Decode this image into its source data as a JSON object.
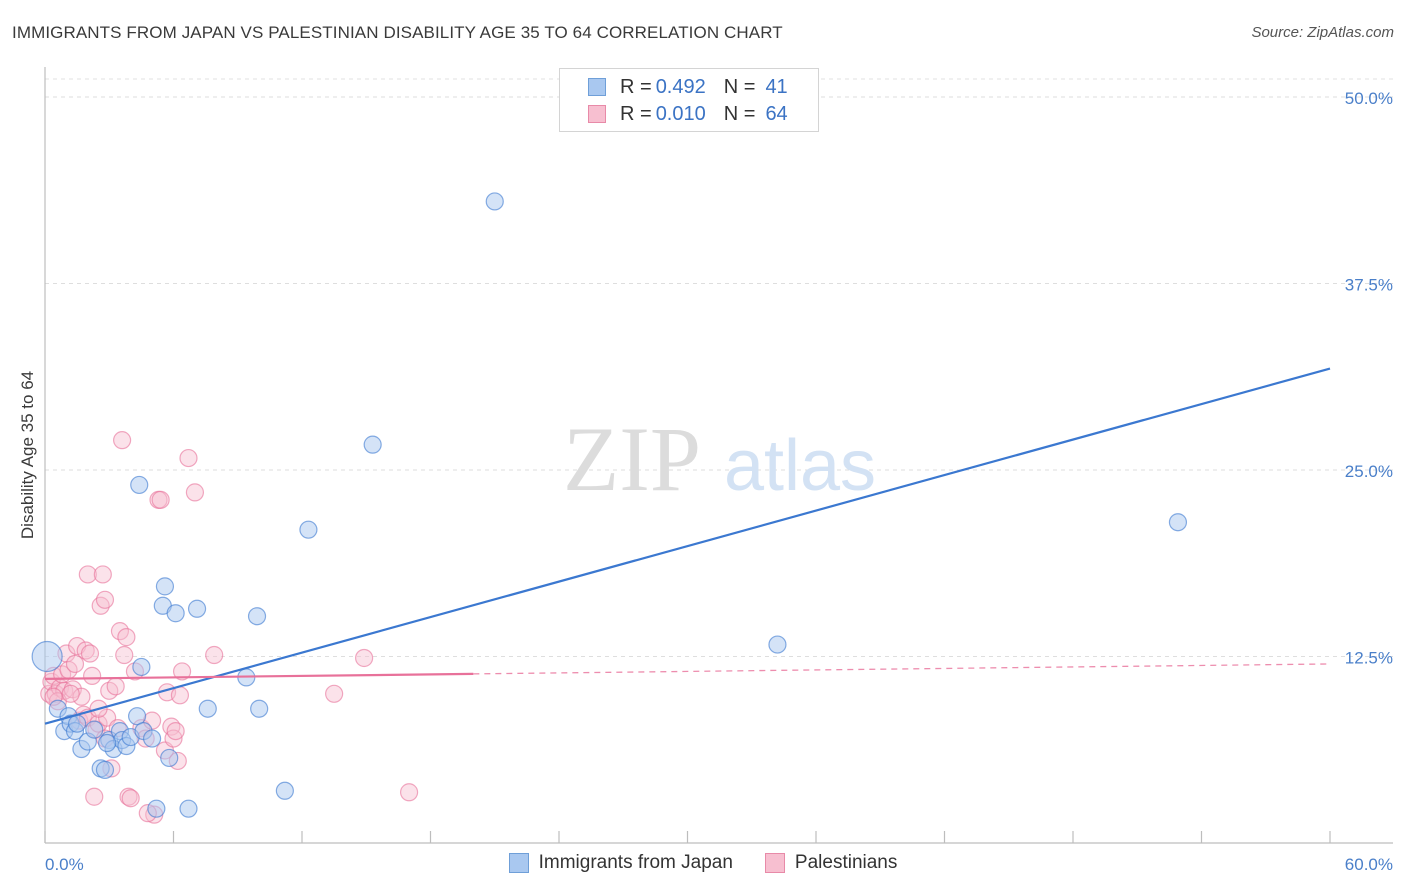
{
  "header": {
    "title": "IMMIGRANTS FROM JAPAN VS PALESTINIAN DISABILITY AGE 35 TO 64 CORRELATION CHART",
    "source": "Source: ZipAtlas.com"
  },
  "watermark": {
    "zip": "ZIP",
    "atlas": "atlas"
  },
  "legend": {
    "rows": [
      {
        "r_label": "R = ",
        "r_value": "0.492",
        "n_label": "N = ",
        "n_value": "41",
        "color": "#a9c8f0",
        "border": "#6f9fd8"
      },
      {
        "r_label": "R = ",
        "r_value": "0.010",
        "n_label": "N = ",
        "n_value": "64",
        "color": "#f7bfd0",
        "border": "#e88aa8"
      }
    ]
  },
  "bottom_legend": {
    "items": [
      {
        "label": "Immigrants from Japan",
        "color": "#a9c8f0",
        "border": "#6f9fd8"
      },
      {
        "label": "Palestinians",
        "color": "#f7bfd0",
        "border": "#e88aa8"
      }
    ]
  },
  "chart_data": {
    "type": "scatter",
    "title": "IMMIGRANTS FROM JAPAN VS PALESTINIAN DISABILITY AGE 35 TO 64 CORRELATION CHART",
    "xlabel": "",
    "ylabel": "Disability Age 35 to 64",
    "xlim": [
      0,
      60
    ],
    "ylim": [
      0,
      50
    ],
    "x_tick_labels": [
      "0.0%",
      "60.0%"
    ],
    "y_ticks": [
      12.5,
      25.0,
      37.5,
      50.0
    ],
    "y_tick_labels": [
      "12.5%",
      "25.0%",
      "37.5%",
      "50.0%"
    ],
    "grid": true,
    "colors": {
      "japan": "#3b78d0",
      "palestinians": "#e8719a",
      "japan_fill": "#a9c8f0",
      "pal_fill": "#f7bfd0"
    },
    "series": [
      {
        "name": "Immigrants from Japan",
        "points": [
          [
            0.1,
            12.5
          ],
          [
            0.6,
            9.0
          ],
          [
            0.9,
            7.5
          ],
          [
            1.1,
            8.5
          ],
          [
            1.2,
            8.0
          ],
          [
            1.4,
            7.5
          ],
          [
            1.7,
            6.3
          ],
          [
            2.0,
            6.8
          ],
          [
            2.3,
            7.6
          ],
          [
            2.6,
            5.0
          ],
          [
            2.8,
            4.9
          ],
          [
            3.0,
            6.9
          ],
          [
            3.2,
            6.3
          ],
          [
            3.5,
            7.5
          ],
          [
            3.6,
            6.9
          ],
          [
            3.8,
            6.5
          ],
          [
            4.0,
            7.1
          ],
          [
            4.3,
            8.5
          ],
          [
            4.5,
            11.8
          ],
          [
            4.6,
            7.5
          ],
          [
            5.0,
            7.0
          ],
          [
            5.2,
            2.3
          ],
          [
            5.6,
            17.2
          ],
          [
            5.8,
            5.7
          ],
          [
            5.5,
            15.9
          ],
          [
            6.1,
            15.4
          ],
          [
            6.7,
            2.3
          ],
          [
            7.1,
            15.7
          ],
          [
            7.6,
            9.0
          ],
          [
            4.4,
            24.0
          ],
          [
            9.4,
            11.1
          ],
          [
            9.9,
            15.2
          ],
          [
            10.0,
            9.0
          ],
          [
            11.2,
            3.5
          ],
          [
            12.3,
            21.0
          ],
          [
            15.3,
            26.7
          ],
          [
            21.0,
            43.0
          ],
          [
            34.2,
            13.3
          ],
          [
            52.9,
            21.5
          ],
          [
            1.5,
            8.0
          ],
          [
            2.9,
            6.7
          ]
        ],
        "trend": {
          "x": [
            0,
            60
          ],
          "y": [
            8.0,
            31.8
          ],
          "solid_to": 60
        }
      },
      {
        "name": "Palestinians",
        "points": [
          [
            0.2,
            10.0
          ],
          [
            0.3,
            10.8
          ],
          [
            0.4,
            11.2
          ],
          [
            0.5,
            10.0
          ],
          [
            0.7,
            10.4
          ],
          [
            0.8,
            11.3
          ],
          [
            0.9,
            10.2
          ],
          [
            1.0,
            12.7
          ],
          [
            1.1,
            11.6
          ],
          [
            1.3,
            10.3
          ],
          [
            1.5,
            13.2
          ],
          [
            1.6,
            8.2
          ],
          [
            1.7,
            9.8
          ],
          [
            1.8,
            8.6
          ],
          [
            1.9,
            12.9
          ],
          [
            2.0,
            8.4
          ],
          [
            2.1,
            12.7
          ],
          [
            2.2,
            11.2
          ],
          [
            2.0,
            18.0
          ],
          [
            2.3,
            3.1
          ],
          [
            2.4,
            7.6
          ],
          [
            2.5,
            8.0
          ],
          [
            2.6,
            15.9
          ],
          [
            2.7,
            18.0
          ],
          [
            2.8,
            16.3
          ],
          [
            2.9,
            8.4
          ],
          [
            3.0,
            10.2
          ],
          [
            3.1,
            5.0
          ],
          [
            3.3,
            10.5
          ],
          [
            3.4,
            7.7
          ],
          [
            3.5,
            14.2
          ],
          [
            3.6,
            27.0
          ],
          [
            3.7,
            12.6
          ],
          [
            3.8,
            13.8
          ],
          [
            3.9,
            3.1
          ],
          [
            4.0,
            3.0
          ],
          [
            4.2,
            11.5
          ],
          [
            4.5,
            7.7
          ],
          [
            4.7,
            7.0
          ],
          [
            5.0,
            8.2
          ],
          [
            5.1,
            1.9
          ],
          [
            5.3,
            23.0
          ],
          [
            5.4,
            23.0
          ],
          [
            5.6,
            6.2
          ],
          [
            5.7,
            10.1
          ],
          [
            5.9,
            7.8
          ],
          [
            6.0,
            7.0
          ],
          [
            6.1,
            7.5
          ],
          [
            6.3,
            9.9
          ],
          [
            6.4,
            11.5
          ],
          [
            6.7,
            25.8
          ],
          [
            7.0,
            23.5
          ],
          [
            7.9,
            12.6
          ],
          [
            13.5,
            10.0
          ],
          [
            14.9,
            12.4
          ],
          [
            17.0,
            3.4
          ],
          [
            0.6,
            9.5
          ],
          [
            1.2,
            10.0
          ],
          [
            0.4,
            9.8
          ],
          [
            2.8,
            7.0
          ],
          [
            4.8,
            2.0
          ],
          [
            6.2,
            5.5
          ],
          [
            1.4,
            12.0
          ],
          [
            2.5,
            9.0
          ]
        ],
        "trend": {
          "x": [
            0,
            60
          ],
          "y": [
            11.0,
            12.0
          ],
          "solid_to": 20
        }
      }
    ]
  }
}
